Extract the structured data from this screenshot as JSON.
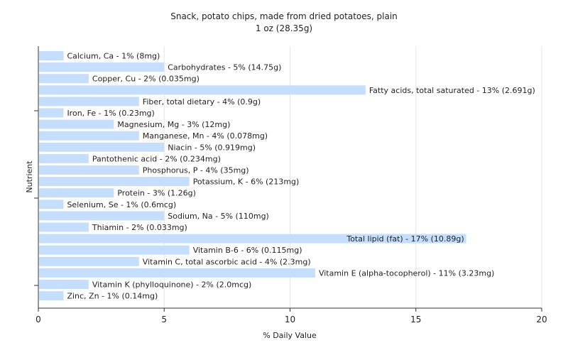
{
  "chart_data": {
    "type": "bar",
    "orientation": "horizontal",
    "title": "Snack, potato chips, made from dried potatoes, plain",
    "subtitle": "1 oz (28.35g)",
    "xlabel": "% Daily Value",
    "ylabel": "Nutrient",
    "xlim": [
      0,
      20
    ],
    "xticks": [
      0,
      5,
      10,
      15,
      20
    ],
    "grid": true,
    "bar_color": "#c6defe",
    "categories": [
      "Calcium, Ca",
      "Carbohydrates",
      "Copper, Cu",
      "Fatty acids, total saturated",
      "Fiber, total dietary",
      "Iron, Fe",
      "Magnesium, Mg",
      "Manganese, Mn",
      "Niacin",
      "Pantothenic acid",
      "Phosphorus, P",
      "Potassium, K",
      "Protein",
      "Selenium, Se",
      "Sodium, Na",
      "Thiamin",
      "Total lipid (fat)",
      "Vitamin B-6",
      "Vitamin C, total ascorbic acid",
      "Vitamin E (alpha-tocopherol)",
      "Vitamin K (phylloquinone)",
      "Zinc, Zn"
    ],
    "values": [
      1,
      5,
      2,
      13,
      4,
      1,
      3,
      4,
      5,
      2,
      4,
      6,
      3,
      1,
      5,
      2,
      17,
      6,
      4,
      11,
      2,
      1
    ],
    "labels": [
      "Calcium, Ca - 1% (8mg)",
      "Carbohydrates - 5% (14.75g)",
      "Copper, Cu - 2% (0.035mg)",
      "Fatty acids, total saturated - 13% (2.691g)",
      "Fiber, total dietary - 4% (0.9g)",
      "Iron, Fe - 1% (0.23mg)",
      "Magnesium, Mg - 3% (12mg)",
      "Manganese, Mn - 4% (0.078mg)",
      "Niacin - 5% (0.919mg)",
      "Pantothenic acid - 2% (0.234mg)",
      "Phosphorus, P - 4% (35mg)",
      "Potassium, K - 6% (213mg)",
      "Protein - 3% (1.26g)",
      "Selenium, Se - 1% (0.6mcg)",
      "Sodium, Na - 5% (110mg)",
      "Thiamin - 2% (0.033mg)",
      "Total lipid (fat) - 17% (10.89g)",
      "Vitamin B-6 - 6% (0.115mg)",
      "Vitamin C, total ascorbic acid - 4% (2.3mg)",
      "Vitamin E (alpha-tocopherol) - 11% (3.23mg)",
      "Vitamin K (phylloquinone) - 2% (2.0mcg)",
      "Zinc, Zn - 1% (0.14mg)"
    ]
  }
}
